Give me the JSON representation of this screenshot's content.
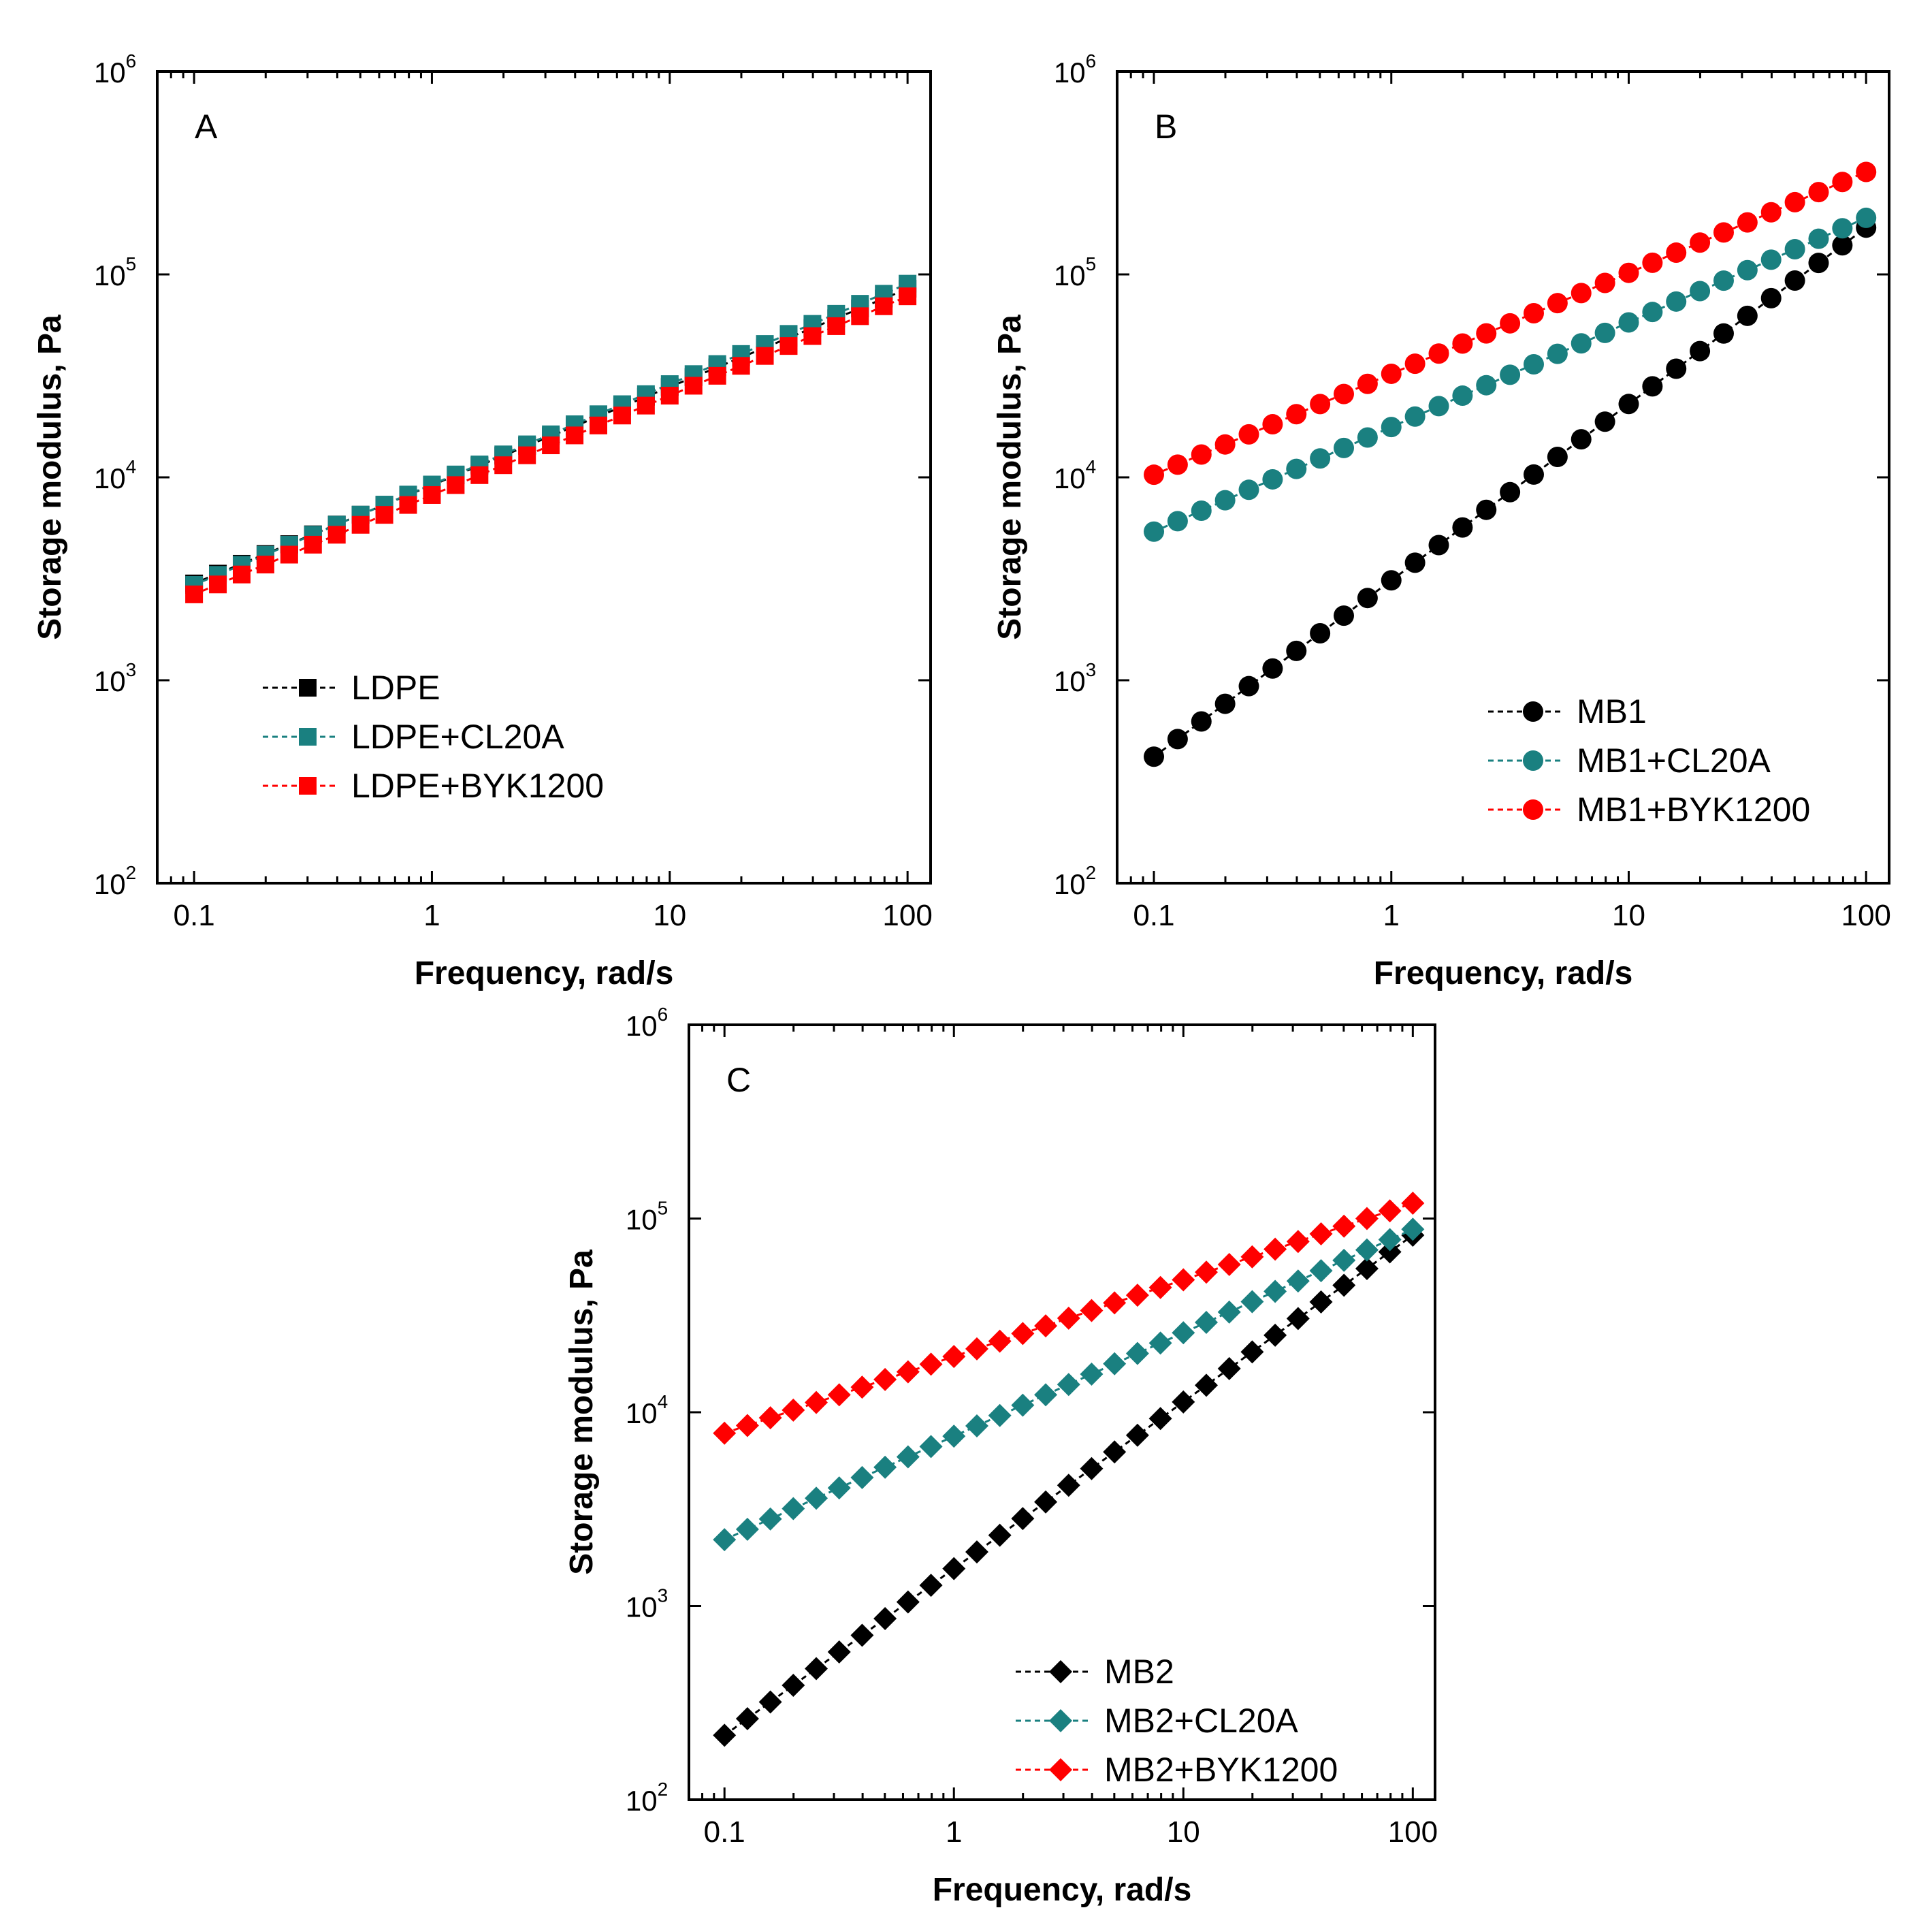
{
  "colors": {
    "black": "#000000",
    "teal": "#1a8080",
    "red": "#ff0000",
    "axis": "#000000"
  },
  "chart_data": [
    {
      "id": "A",
      "type": "scatter",
      "panel_label": "A",
      "xlabel": "Frequency, rad/s",
      "ylabel": "Storage modulus, Pa",
      "x_scale": "log",
      "y_scale": "log",
      "xlim": [
        0.07,
        125
      ],
      "ylim": [
        100,
        1000000
      ],
      "x_ticks": [
        {
          "value": 0.1,
          "label": "0.1"
        },
        {
          "value": 1,
          "label": "1"
        },
        {
          "value": 10,
          "label": "10"
        },
        {
          "value": 100,
          "label": "100"
        }
      ],
      "y_ticks": [
        {
          "value": 100,
          "base": "10",
          "exp": "2"
        },
        {
          "value": 1000,
          "base": "10",
          "exp": "3"
        },
        {
          "value": 10000,
          "base": "10",
          "exp": "4"
        },
        {
          "value": 100000,
          "base": "10",
          "exp": "5"
        },
        {
          "value": 1000000,
          "base": "10",
          "exp": "6"
        }
      ],
      "marker": "square",
      "legend_position": "lower-left",
      "series": [
        {
          "name": "LDPE",
          "color": "black",
          "y_start": 3000,
          "y_end": 85000
        },
        {
          "name": "LDPE+CL20A",
          "color": "teal",
          "y_start": 2950,
          "y_end": 90000
        },
        {
          "name": "LDPE+BYK1200",
          "color": "red",
          "y_start": 2650,
          "y_end": 78000
        }
      ]
    },
    {
      "id": "B",
      "type": "scatter",
      "panel_label": "B",
      "xlabel": "Frequency, rad/s",
      "ylabel": "Storage modulus, Pa",
      "x_scale": "log",
      "y_scale": "log",
      "xlim": [
        0.07,
        125
      ],
      "ylim": [
        100,
        1000000
      ],
      "x_ticks": [
        {
          "value": 0.1,
          "label": "0.1"
        },
        {
          "value": 1,
          "label": "1"
        },
        {
          "value": 10,
          "label": "10"
        },
        {
          "value": 100,
          "label": "100"
        }
      ],
      "y_ticks": [
        {
          "value": 100,
          "base": "10",
          "exp": "2"
        },
        {
          "value": 1000,
          "base": "10",
          "exp": "3"
        },
        {
          "value": 10000,
          "base": "10",
          "exp": "4"
        },
        {
          "value": 100000,
          "base": "10",
          "exp": "5"
        },
        {
          "value": 1000000,
          "base": "10",
          "exp": "6"
        }
      ],
      "marker": "circle",
      "legend_position": "lower-right",
      "series": [
        {
          "name": "MB1",
          "color": "black",
          "y_start": 420,
          "y_end": 170000
        },
        {
          "name": "MB1+CL20A",
          "color": "teal",
          "y_start": 5400,
          "y_end": 190000
        },
        {
          "name": "MB1+BYK1200",
          "color": "red",
          "y_start": 10300,
          "y_end": 320000
        }
      ]
    },
    {
      "id": "C",
      "type": "scatter",
      "panel_label": "C",
      "xlabel": "Frequency, rad/s",
      "ylabel": "Storage modulus, Pa",
      "x_scale": "log",
      "y_scale": "log",
      "xlim": [
        0.07,
        125
      ],
      "ylim": [
        100,
        1000000
      ],
      "x_ticks": [
        {
          "value": 0.1,
          "label": "0.1"
        },
        {
          "value": 1,
          "label": "1"
        },
        {
          "value": 10,
          "label": "10"
        },
        {
          "value": 100,
          "label": "100"
        }
      ],
      "y_ticks": [
        {
          "value": 100,
          "base": "10",
          "exp": "2"
        },
        {
          "value": 1000,
          "base": "10",
          "exp": "3"
        },
        {
          "value": 10000,
          "base": "10",
          "exp": "4"
        },
        {
          "value": 100000,
          "base": "10",
          "exp": "5"
        },
        {
          "value": 1000000,
          "base": "10",
          "exp": "6"
        }
      ],
      "marker": "diamond",
      "legend_position": "lower-right",
      "series": [
        {
          "name": "MB2",
          "color": "black",
          "y_start": 215,
          "y_end": 82000
        },
        {
          "name": "MB2+CL20A",
          "color": "teal",
          "y_start": 2200,
          "y_end": 88000
        },
        {
          "name": "MB2+BYK1200",
          "color": "red",
          "y_start": 7800,
          "y_end": 120000
        }
      ]
    }
  ]
}
